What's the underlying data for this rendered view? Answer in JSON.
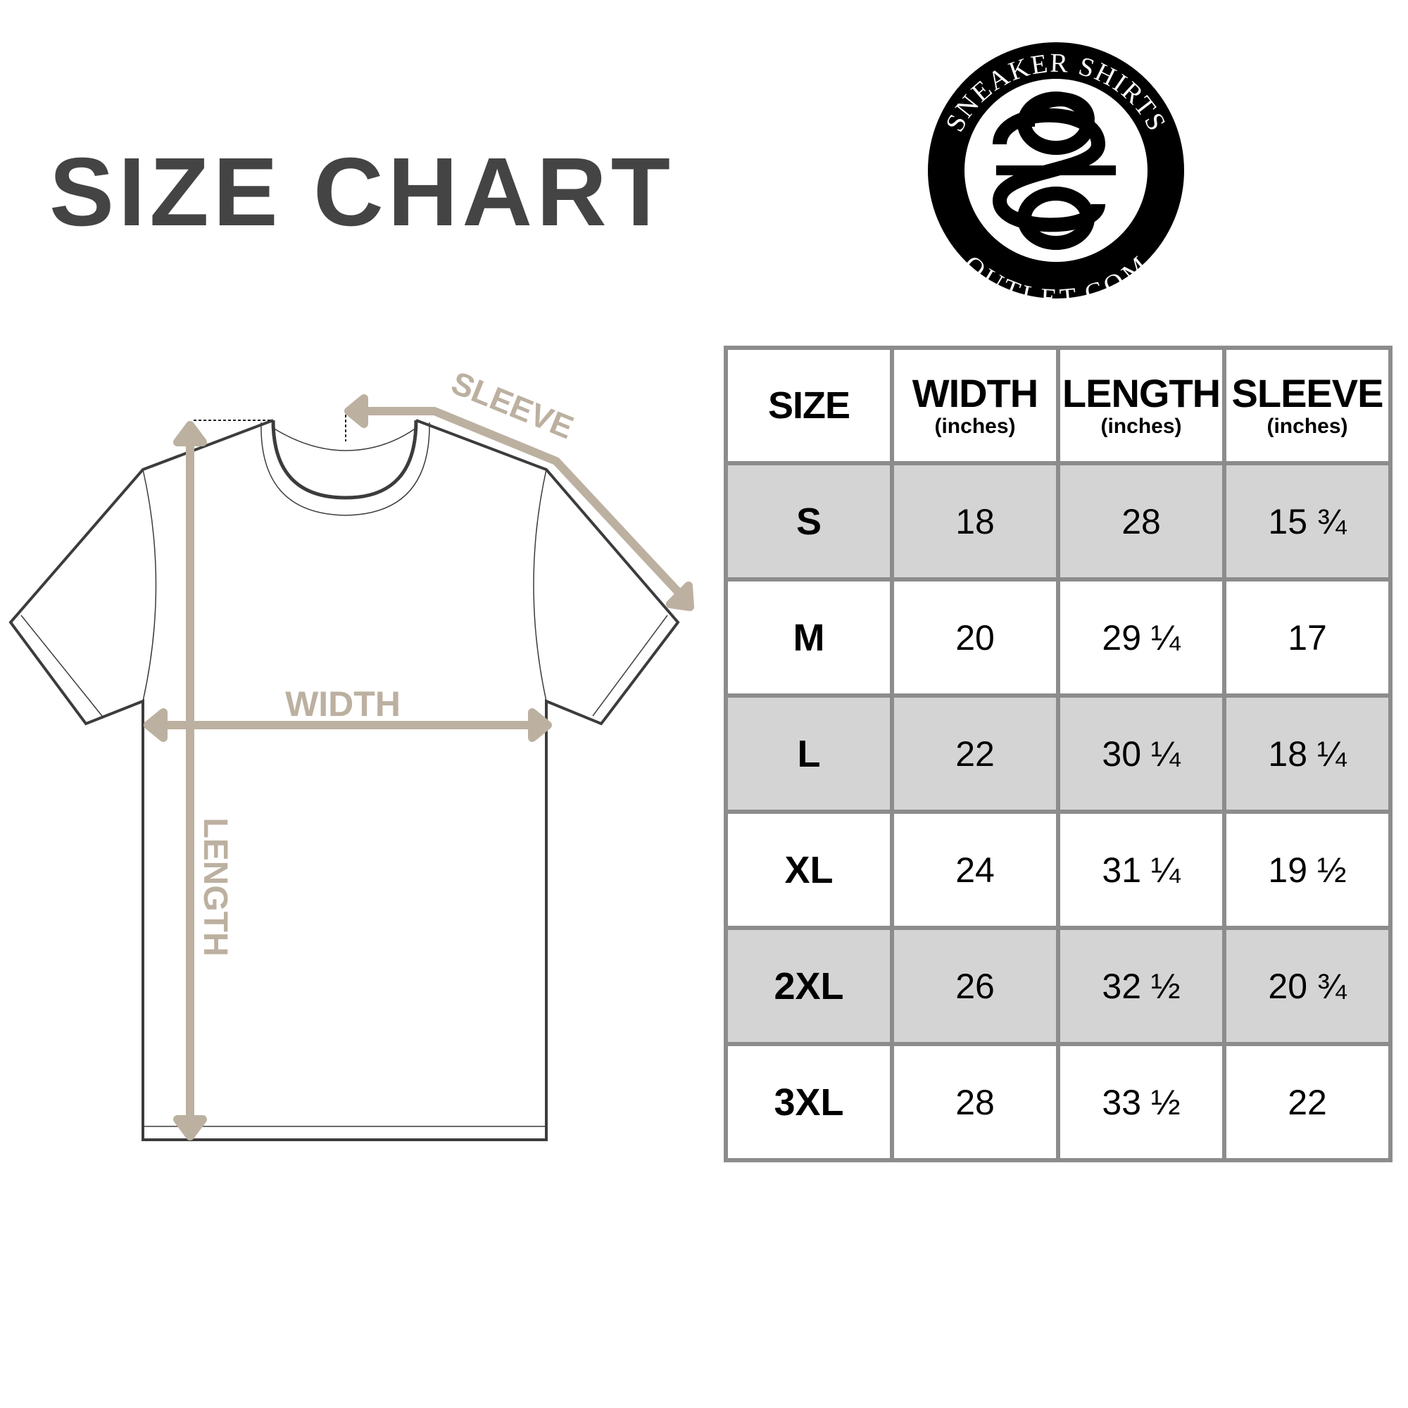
{
  "title": "SIZE CHART",
  "logo": {
    "top_text": "SNEAKER SHIRTS",
    "bottom_text": "OUTLET.COM",
    "monogram": "SO"
  },
  "diagram": {
    "sleeve_label": "SLEEVE",
    "width_label": "WIDTH",
    "length_label": "LENGTH",
    "accent_color": "#bcb0a0"
  },
  "table": {
    "headers": [
      {
        "label": "SIZE",
        "unit": ""
      },
      {
        "label": "WIDTH",
        "unit": "(inches)"
      },
      {
        "label": "LENGTH",
        "unit": "(inches)"
      },
      {
        "label": "SLEEVE",
        "unit": "(inches)"
      }
    ],
    "rows": [
      {
        "size": "S",
        "width": "18",
        "length": "28",
        "sleeve": "15 ¾"
      },
      {
        "size": "M",
        "width": "20",
        "length": "29 ¼",
        "sleeve": "17"
      },
      {
        "size": "L",
        "width": "22",
        "length": "30 ¼",
        "sleeve": "18 ¼"
      },
      {
        "size": "XL",
        "width": "24",
        "length": "31 ¼",
        "sleeve": "19 ½"
      },
      {
        "size": "2XL",
        "width": "26",
        "length": "32 ½",
        "sleeve": "20 ¾"
      },
      {
        "size": "3XL",
        "width": "28",
        "length": "33 ½",
        "sleeve": "22"
      }
    ],
    "shade_color": "#d4d4d4",
    "border_color": "#8c8c8c"
  }
}
